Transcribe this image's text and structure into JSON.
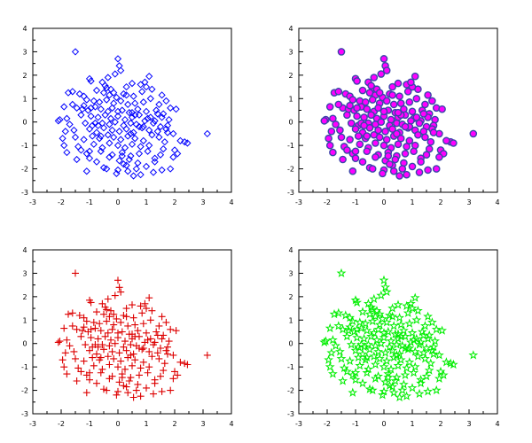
{
  "chart_data": [
    {
      "type": "scatter",
      "xlim": [
        -3,
        4
      ],
      "ylim": [
        -3,
        4
      ],
      "xticks": [
        "-3",
        "-2",
        "-1",
        "0",
        "1",
        "2",
        "3",
        "4"
      ],
      "yticks": [
        "-3",
        "-2",
        "-1",
        "0",
        "1",
        "2",
        "3",
        "4"
      ],
      "grid": false,
      "marker": "diamond",
      "marker_color": "#0000ff",
      "marker_fill": "none",
      "series": [
        {
          "x_ref": "points.x",
          "y_ref": "points.y"
        }
      ]
    },
    {
      "type": "scatter",
      "xlim": [
        -3,
        4
      ],
      "ylim": [
        -3,
        4
      ],
      "xticks": [
        "-3",
        "-2",
        "-1",
        "0",
        "1",
        "2",
        "3",
        "4"
      ],
      "yticks": [
        "-3",
        "-2",
        "-1",
        "0",
        "1",
        "2",
        "3",
        "4"
      ],
      "grid": false,
      "marker": "circle",
      "marker_color": "#3a46a8",
      "marker_fill": "#ff00ff",
      "series": [
        {
          "x_ref": "points.x",
          "y_ref": "points.y"
        }
      ]
    },
    {
      "type": "scatter",
      "xlim": [
        -3,
        4
      ],
      "ylim": [
        -3,
        4
      ],
      "xticks": [
        "-3",
        "-2",
        "-1",
        "0",
        "1",
        "2",
        "3",
        "4"
      ],
      "yticks": [
        "-3",
        "-2",
        "-1",
        "0",
        "1",
        "2",
        "3",
        "4"
      ],
      "grid": false,
      "marker": "plus",
      "marker_color": "#dd0000",
      "marker_fill": "none",
      "series": [
        {
          "x_ref": "points.x",
          "y_ref": "points.y"
        }
      ]
    },
    {
      "type": "scatter",
      "xlim": [
        -3,
        4
      ],
      "ylim": [
        -3,
        4
      ],
      "xticks": [
        "-3",
        "-2",
        "-1",
        "0",
        "1",
        "2",
        "3",
        "4"
      ],
      "yticks": [
        "-3",
        "-2",
        "-1",
        "0",
        "1",
        "2",
        "3",
        "4"
      ],
      "grid": false,
      "marker": "star",
      "marker_color": "#00ee00",
      "marker_fill": "none",
      "series": [
        {
          "x_ref": "points.x",
          "y_ref": "points.y"
        }
      ]
    }
  ],
  "points": {
    "x": [
      -1.5,
      -1.0,
      -0.95,
      -0.55,
      0.0,
      0.05,
      -0.1,
      0.5,
      1.1,
      0.8,
      0.3,
      -0.4,
      -1.75,
      -1.6,
      -1.35,
      -1.2,
      -0.75,
      -0.5,
      -0.3,
      -0.05,
      0.2,
      0.55,
      0.85,
      1.2,
      1.55,
      -1.1,
      -0.85,
      -0.65,
      -0.4,
      -0.15,
      0.1,
      0.35,
      0.6,
      0.9,
      1.15,
      1.45,
      1.7,
      -1.9,
      -1.45,
      -1.25,
      -1.05,
      -0.8,
      -0.6,
      -0.35,
      -0.2,
      0.15,
      0.4,
      0.7,
      1.0,
      1.35,
      1.6,
      1.85,
      2.05,
      -2.05,
      -1.8,
      -1.3,
      -0.95,
      -0.7,
      -0.45,
      -0.25,
      0.0,
      0.25,
      0.5,
      0.75,
      1.05,
      1.3,
      1.55,
      1.8,
      3.15,
      -2.1,
      -1.7,
      -1.15,
      -0.9,
      -0.55,
      -0.3,
      -0.1,
      0.2,
      0.45,
      0.65,
      0.95,
      1.25,
      1.5,
      1.75,
      -1.85,
      -1.55,
      -1.0,
      -0.75,
      -0.5,
      -0.2,
      0.05,
      0.3,
      0.55,
      0.85,
      1.1,
      1.4,
      1.7,
      1.95,
      2.35,
      -1.95,
      -1.5,
      -1.2,
      -0.9,
      -0.65,
      -0.35,
      -0.15,
      0.1,
      0.35,
      0.6,
      0.9,
      1.2,
      1.45,
      2.2,
      -1.9,
      -1.4,
      -0.85,
      -0.55,
      -0.3,
      0.0,
      0.25,
      0.5,
      0.8,
      1.1,
      1.6,
      2.0,
      2.45,
      -1.8,
      -1.1,
      -0.6,
      -0.2,
      0.15,
      0.45,
      0.75,
      1.05,
      1.5,
      2.1,
      -1.45,
      -1.0,
      -0.75,
      -0.3,
      0.05,
      0.4,
      0.7,
      1.3,
      1.95,
      -1.1,
      -0.5,
      0.0,
      0.3,
      0.65,
      1.0,
      1.55,
      -0.4,
      -0.05,
      0.35,
      0.8,
      1.25,
      0.2,
      0.55,
      1.85,
      -0.6,
      0.9,
      1.0,
      -1.2,
      -0.25,
      0.1,
      -0.8,
      0.45,
      1.4,
      -1.6,
      -0.45,
      0.6,
      1.65,
      -0.95,
      0.3,
      1.15,
      -0.15,
      0.75,
      -1.3,
      0.0,
      1.3,
      -0.7,
      0.95,
      0.15,
      -0.35,
      1.75,
      -1.0,
      0.5
    ],
    "y": [
      3.0,
      1.85,
      1.75,
      1.7,
      2.7,
      2.4,
      2.05,
      1.65,
      1.95,
      1.6,
      1.5,
      1.45,
      1.25,
      1.3,
      1.2,
      1.1,
      1.35,
      1.25,
      1.15,
      1.05,
      1.2,
      1.1,
      1.3,
      1.4,
      1.15,
      0.95,
      0.9,
      0.85,
      0.95,
      0.8,
      0.9,
      0.75,
      0.8,
      0.85,
      1.0,
      0.75,
      0.9,
      0.65,
      0.6,
      0.55,
      0.5,
      0.65,
      0.55,
      0.45,
      0.6,
      0.5,
      0.4,
      0.55,
      0.45,
      0.5,
      0.35,
      0.6,
      0.55,
      0.1,
      0.15,
      0.3,
      0.25,
      0.2,
      0.3,
      0.15,
      0.25,
      0.1,
      0.2,
      0.3,
      0.15,
      0.05,
      0.2,
      0.1,
      -0.5,
      0.05,
      -0.1,
      -0.05,
      -0.15,
      -0.05,
      -0.1,
      0.0,
      -0.15,
      -0.05,
      -0.1,
      0.05,
      -0.05,
      -0.2,
      -0.15,
      -0.4,
      -0.35,
      -0.3,
      -0.45,
      -0.25,
      -0.35,
      -0.4,
      -0.3,
      -0.45,
      -0.25,
      -0.35,
      -0.4,
      -0.3,
      -0.5,
      -0.85,
      -0.7,
      -0.65,
      -0.75,
      -0.6,
      -0.7,
      -0.55,
      -0.65,
      -0.75,
      -0.6,
      -0.7,
      -0.8,
      -0.55,
      -0.65,
      -0.8,
      -1.0,
      -1.05,
      -0.95,
      -1.1,
      -0.9,
      -1.0,
      -1.1,
      -0.95,
      -1.05,
      -1.0,
      -1.15,
      -1.2,
      -0.9,
      -1.3,
      -1.35,
      -1.25,
      -1.4,
      -1.3,
      -1.45,
      -1.35,
      -1.25,
      -1.4,
      -1.35,
      -1.6,
      -1.55,
      -1.7,
      -1.5,
      -1.65,
      -1.6,
      -1.75,
      -1.55,
      -1.5,
      -2.1,
      -1.95,
      -2.05,
      -1.85,
      -2.0,
      -1.9,
      -2.05,
      -2.0,
      -2.2,
      -2.1,
      -2.25,
      -2.15,
      -1.8,
      -2.3,
      -2.0,
      -0.6,
      -0.2,
      1.5,
      0.7,
      1.4,
      2.2,
      -0.05,
      -0.5,
      0.35,
      0.75,
      1.55,
      0.3,
      -0.85,
      0.6,
      1.15,
      0.2,
      1.25,
      -0.2,
      -1.2,
      0.45,
      -1.7,
      -0.15,
      1.7,
      -1.45,
      1.9,
      -0.45,
      -1.25,
      0.4
    ]
  }
}
